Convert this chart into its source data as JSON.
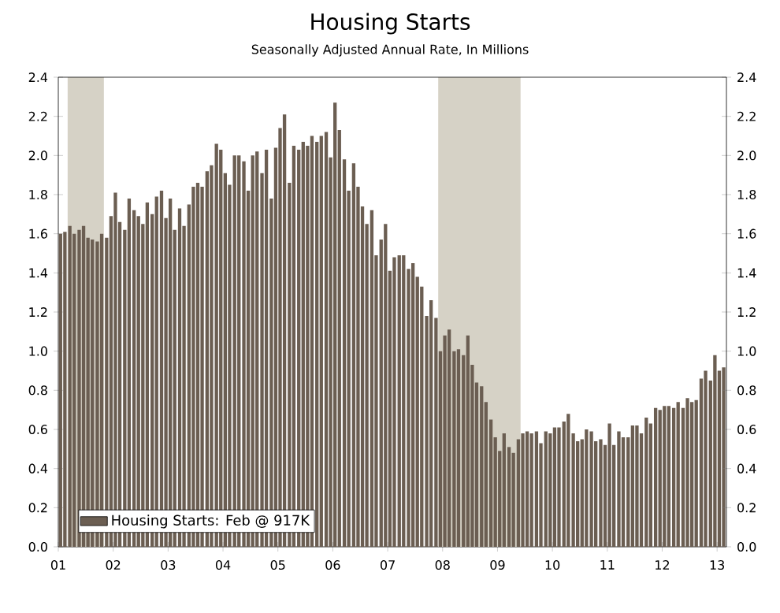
{
  "chart_data": {
    "type": "bar",
    "title": "Housing Starts",
    "subtitle": "Seasonally Adjusted Annual Rate, In Millions",
    "x": [
      "2001-01",
      "2001-02",
      "2001-03",
      "2001-04",
      "2001-05",
      "2001-06",
      "2001-07",
      "2001-08",
      "2001-09",
      "2001-10",
      "2001-11",
      "2001-12",
      "2002-01",
      "2002-02",
      "2002-03",
      "2002-04",
      "2002-05",
      "2002-06",
      "2002-07",
      "2002-08",
      "2002-09",
      "2002-10",
      "2002-11",
      "2002-12",
      "2003-01",
      "2003-02",
      "2003-03",
      "2003-04",
      "2003-05",
      "2003-06",
      "2003-07",
      "2003-08",
      "2003-09",
      "2003-10",
      "2003-11",
      "2003-12",
      "2004-01",
      "2004-02",
      "2004-03",
      "2004-04",
      "2004-05",
      "2004-06",
      "2004-07",
      "2004-08",
      "2004-09",
      "2004-10",
      "2004-11",
      "2004-12",
      "2005-01",
      "2005-02",
      "2005-03",
      "2005-04",
      "2005-05",
      "2005-06",
      "2005-07",
      "2005-08",
      "2005-09",
      "2005-10",
      "2005-11",
      "2005-12",
      "2006-01",
      "2006-02",
      "2006-03",
      "2006-04",
      "2006-05",
      "2006-06",
      "2006-07",
      "2006-08",
      "2006-09",
      "2006-10",
      "2006-11",
      "2006-12",
      "2007-01",
      "2007-02",
      "2007-03",
      "2007-04",
      "2007-05",
      "2007-06",
      "2007-07",
      "2007-08",
      "2007-09",
      "2007-10",
      "2007-11",
      "2007-12",
      "2008-01",
      "2008-02",
      "2008-03",
      "2008-04",
      "2008-05",
      "2008-06",
      "2008-07",
      "2008-08",
      "2008-09",
      "2008-10",
      "2008-11",
      "2008-12",
      "2009-01",
      "2009-02",
      "2009-03",
      "2009-04",
      "2009-05",
      "2009-06",
      "2009-07",
      "2009-08",
      "2009-09",
      "2009-10",
      "2009-11",
      "2009-12",
      "2010-01",
      "2010-02",
      "2010-03",
      "2010-04",
      "2010-05",
      "2010-06",
      "2010-07",
      "2010-08",
      "2010-09",
      "2010-10",
      "2010-11",
      "2010-12",
      "2011-01",
      "2011-02",
      "2011-03",
      "2011-04",
      "2011-05",
      "2011-06",
      "2011-07",
      "2011-08",
      "2011-09",
      "2011-10",
      "2011-11",
      "2011-12",
      "2012-01",
      "2012-02",
      "2012-03",
      "2012-04",
      "2012-05",
      "2012-06",
      "2012-07",
      "2012-08",
      "2012-09",
      "2012-10",
      "2012-11",
      "2012-12",
      "2013-01",
      "2013-02"
    ],
    "series": [
      {
        "name": "Housing Starts: Feb @ 917K",
        "color": "#6b5e52",
        "values": [
          1.6,
          1.61,
          1.64,
          1.6,
          1.62,
          1.64,
          1.58,
          1.57,
          1.56,
          1.6,
          1.58,
          1.69,
          1.81,
          1.66,
          1.62,
          1.78,
          1.72,
          1.69,
          1.65,
          1.76,
          1.7,
          1.79,
          1.82,
          1.68,
          1.78,
          1.62,
          1.73,
          1.64,
          1.75,
          1.84,
          1.86,
          1.84,
          1.92,
          1.95,
          2.06,
          2.03,
          1.91,
          1.85,
          2.0,
          2.0,
          1.97,
          1.82,
          2.0,
          2.02,
          1.91,
          2.03,
          1.78,
          2.04,
          2.14,
          2.21,
          1.86,
          2.05,
          2.03,
          2.07,
          2.05,
          2.1,
          2.07,
          2.1,
          2.12,
          1.99,
          2.27,
          2.13,
          1.98,
          1.82,
          1.96,
          1.84,
          1.74,
          1.65,
          1.72,
          1.49,
          1.57,
          1.65,
          1.41,
          1.48,
          1.49,
          1.49,
          1.42,
          1.45,
          1.38,
          1.33,
          1.18,
          1.26,
          1.17,
          1.0,
          1.08,
          1.11,
          1.0,
          1.01,
          0.98,
          1.08,
          0.93,
          0.84,
          0.82,
          0.74,
          0.65,
          0.56,
          0.49,
          0.58,
          0.51,
          0.48,
          0.55,
          0.58,
          0.59,
          0.58,
          0.59,
          0.53,
          0.59,
          0.58,
          0.61,
          0.61,
          0.64,
          0.68,
          0.58,
          0.54,
          0.55,
          0.6,
          0.59,
          0.54,
          0.55,
          0.52,
          0.63,
          0.52,
          0.59,
          0.56,
          0.56,
          0.62,
          0.62,
          0.58,
          0.66,
          0.63,
          0.71,
          0.7,
          0.72,
          0.72,
          0.71,
          0.74,
          0.71,
          0.76,
          0.74,
          0.75,
          0.86,
          0.9,
          0.85,
          0.98,
          0.9,
          0.917
        ]
      }
    ],
    "xlim": [
      "2001-01",
      "2013-03"
    ],
    "xticks": [
      {
        "value": "2001-01",
        "label": "01"
      },
      {
        "value": "2002-01",
        "label": "02"
      },
      {
        "value": "2003-01",
        "label": "03"
      },
      {
        "value": "2004-01",
        "label": "04"
      },
      {
        "value": "2005-01",
        "label": "05"
      },
      {
        "value": "2006-01",
        "label": "06"
      },
      {
        "value": "2007-01",
        "label": "07"
      },
      {
        "value": "2008-01",
        "label": "08"
      },
      {
        "value": "2009-01",
        "label": "09"
      },
      {
        "value": "2010-01",
        "label": "10"
      },
      {
        "value": "2011-01",
        "label": "11"
      },
      {
        "value": "2012-01",
        "label": "12"
      },
      {
        "value": "2013-01",
        "label": "13"
      }
    ],
    "ylim": [
      0,
      2.4
    ],
    "yticks": [
      {
        "value": 0,
        "label": "0.0"
      },
      0.2,
      0.4,
      0.6,
      0.8,
      {
        "value": 1,
        "label": "1.0"
      },
      1.2,
      1.4,
      1.6,
      1.8,
      {
        "value": 2,
        "label": "2.0"
      },
      2.2,
      2.4
    ],
    "y2lim": [
      0,
      2.4
    ],
    "y2ticks": [
      {
        "value": 0,
        "label": "0.0"
      },
      0.2,
      0.4,
      0.6,
      0.8,
      {
        "value": 1,
        "label": "1.0"
      },
      1.2,
      1.4,
      1.6,
      1.8,
      {
        "value": 2,
        "label": "2.0"
      },
      2.2,
      2.4
    ],
    "bands": [
      {
        "axis": "x",
        "from": "2001-03",
        "to": "2001-11",
        "color": "#d6d2c6"
      },
      {
        "axis": "x",
        "from": "2007-12",
        "to": "2009-06",
        "color": "#d6d2c6"
      }
    ],
    "legend": "bottom left",
    "grid": false
  }
}
